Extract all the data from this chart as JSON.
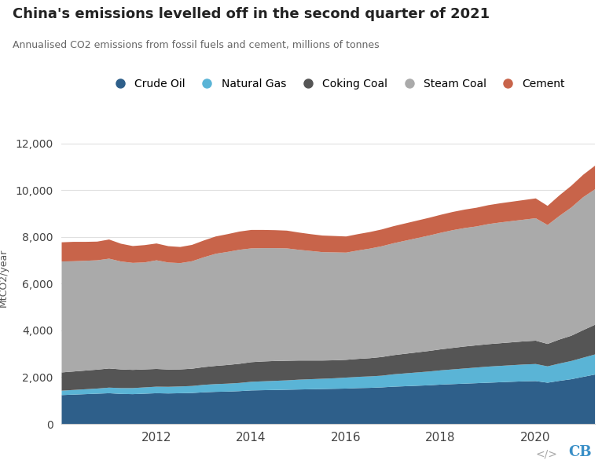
{
  "title": "China's emissions levelled off in the second quarter of 2021",
  "subtitle": "Annualised CO2 emissions from fossil fuels and cement, millions of tonnes",
  "ylabel": "MtCO2/year",
  "colors": {
    "Crude Oil": "#2e5f8a",
    "Natural Gas": "#5ab4d6",
    "Coking Coal": "#555555",
    "Steam Coal": "#aaaaaa",
    "Cement": "#c8644a"
  },
  "years": [
    2010.0,
    2010.25,
    2010.5,
    2010.75,
    2011.0,
    2011.25,
    2011.5,
    2011.75,
    2012.0,
    2012.25,
    2012.5,
    2012.75,
    2013.0,
    2013.25,
    2013.5,
    2013.75,
    2014.0,
    2014.25,
    2014.5,
    2014.75,
    2015.0,
    2015.25,
    2015.5,
    2015.75,
    2016.0,
    2016.25,
    2016.5,
    2016.75,
    2017.0,
    2017.25,
    2017.5,
    2017.75,
    2018.0,
    2018.25,
    2018.5,
    2018.75,
    2019.0,
    2019.25,
    2019.5,
    2019.75,
    2020.0,
    2020.25,
    2020.5,
    2020.75,
    2021.0,
    2021.25
  ],
  "crude_oil": [
    1250,
    1270,
    1290,
    1310,
    1330,
    1300,
    1290,
    1310,
    1330,
    1320,
    1330,
    1340,
    1370,
    1390,
    1400,
    1420,
    1450,
    1460,
    1470,
    1480,
    1490,
    1500,
    1510,
    1520,
    1530,
    1550,
    1560,
    1580,
    1610,
    1630,
    1650,
    1670,
    1700,
    1720,
    1740,
    1760,
    1780,
    1800,
    1820,
    1840,
    1850,
    1780,
    1860,
    1930,
    2030,
    2130
  ],
  "natural_gas": [
    190,
    200,
    210,
    220,
    240,
    250,
    260,
    270,
    280,
    285,
    290,
    300,
    320,
    330,
    340,
    350,
    370,
    380,
    390,
    400,
    420,
    430,
    440,
    450,
    470,
    480,
    490,
    500,
    530,
    550,
    570,
    590,
    610,
    630,
    650,
    670,
    690,
    700,
    710,
    720,
    730,
    700,
    740,
    780,
    820,
    860
  ],
  "coking_coal": [
    780,
    790,
    800,
    810,
    820,
    800,
    780,
    770,
    760,
    740,
    730,
    740,
    760,
    780,
    800,
    820,
    840,
    850,
    850,
    840,
    820,
    800,
    780,
    770,
    760,
    770,
    780,
    800,
    820,
    840,
    860,
    880,
    900,
    920,
    940,
    950,
    960,
    970,
    980,
    990,
    1000,
    960,
    1030,
    1080,
    1180,
    1270
  ],
  "steam_coal": [
    4750,
    4720,
    4700,
    4680,
    4700,
    4620,
    4580,
    4580,
    4650,
    4580,
    4550,
    4600,
    4700,
    4800,
    4840,
    4880,
    4870,
    4850,
    4830,
    4810,
    4740,
    4690,
    4640,
    4620,
    4590,
    4640,
    4690,
    4740,
    4790,
    4840,
    4890,
    4940,
    4990,
    5040,
    5070,
    5090,
    5140,
    5170,
    5190,
    5210,
    5240,
    5090,
    5290,
    5490,
    5690,
    5800
  ],
  "cement": [
    820,
    830,
    810,
    800,
    820,
    760,
    720,
    740,
    720,
    700,
    690,
    700,
    720,
    740,
    760,
    780,
    790,
    780,
    770,
    760,
    740,
    720,
    710,
    700,
    690,
    700,
    710,
    720,
    730,
    740,
    750,
    760,
    770,
    780,
    790,
    800,
    810,
    820,
    830,
    840,
    850,
    820,
    880,
    930,
    960,
    1010
  ],
  "ylim": [
    0,
    12500
  ],
  "yticks": [
    0,
    2000,
    4000,
    6000,
    8000,
    10000,
    12000
  ],
  "xticks": [
    2012,
    2014,
    2016,
    2018,
    2020
  ],
  "background": "#ffffff",
  "grid_color": "#e0e0e0"
}
